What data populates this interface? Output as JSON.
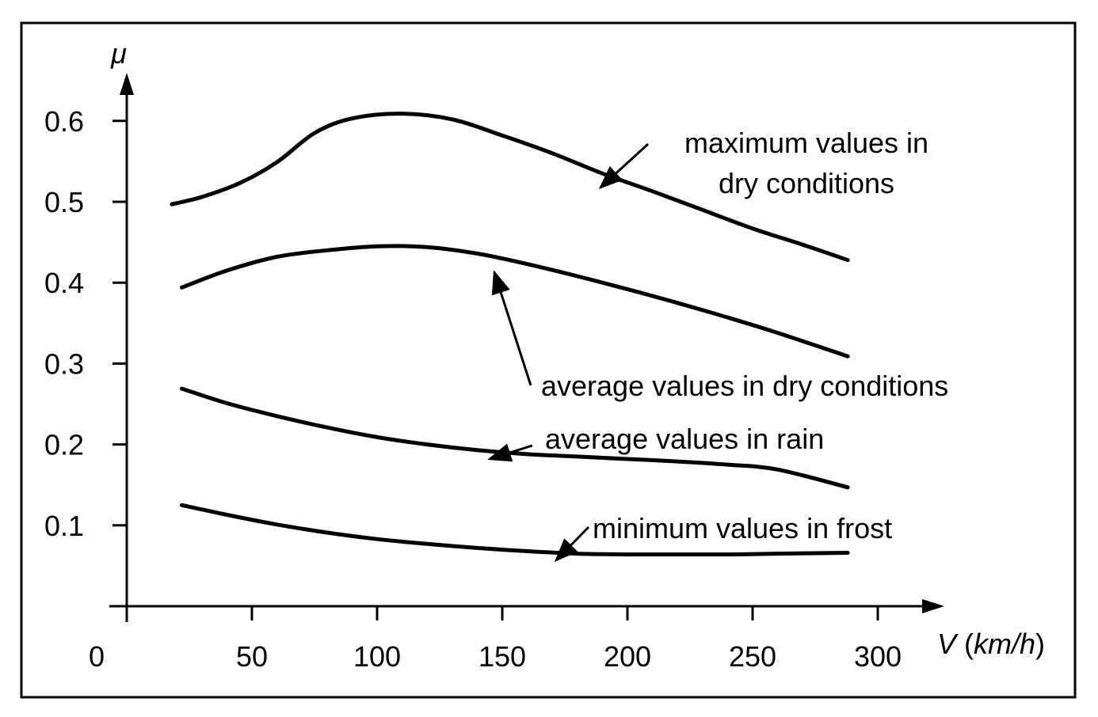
{
  "chart_data": {
    "type": "line",
    "title": "",
    "xlabel": {
      "var": "V",
      "open": " (",
      "unit": "km/h",
      "close": ")"
    },
    "ylabel": "μ",
    "xlim": [
      0,
      330
    ],
    "ylim": [
      0,
      0.67
    ],
    "x_ticks": [
      0,
      50,
      100,
      150,
      200,
      250,
      300
    ],
    "x_tick_labels": [
      "0",
      "50",
      "100",
      "150",
      "200",
      "250",
      "300"
    ],
    "y_ticks": [
      0.1,
      0.2,
      0.3,
      0.4,
      0.5,
      0.6
    ],
    "y_tick_labels": [
      "0.1",
      "0.2",
      "0.3",
      "0.4",
      "0.5",
      "0.6"
    ],
    "grid": false,
    "series": [
      {
        "name": "maximum values in dry conditions",
        "x": [
          18,
          30,
          45,
          60,
          75,
          90,
          110,
          130,
          150,
          170,
          190,
          210,
          230,
          250,
          270,
          288
        ],
        "y": [
          0.497,
          0.506,
          0.523,
          0.549,
          0.585,
          0.603,
          0.609,
          0.602,
          0.582,
          0.56,
          0.535,
          0.513,
          0.49,
          0.467,
          0.447,
          0.428
        ]
      },
      {
        "name": "average values in dry conditions",
        "x": [
          22,
          40,
          60,
          80,
          100,
          120,
          140,
          160,
          180,
          200,
          220,
          240,
          260,
          288
        ],
        "y": [
          0.394,
          0.415,
          0.432,
          0.44,
          0.445,
          0.444,
          0.436,
          0.423,
          0.408,
          0.392,
          0.375,
          0.357,
          0.338,
          0.309
        ]
      },
      {
        "name": "average values in rain",
        "x": [
          22,
          40,
          60,
          80,
          100,
          120,
          140,
          160,
          180,
          200,
          220,
          240,
          260,
          288
        ],
        "y": [
          0.269,
          0.251,
          0.235,
          0.221,
          0.209,
          0.2,
          0.193,
          0.188,
          0.185,
          0.182,
          0.179,
          0.175,
          0.169,
          0.147
        ]
      },
      {
        "name": "minimum values in frost",
        "x": [
          22,
          40,
          60,
          80,
          100,
          120,
          140,
          160,
          180,
          200,
          220,
          240,
          260,
          288
        ],
        "y": [
          0.125,
          0.113,
          0.101,
          0.091,
          0.083,
          0.077,
          0.072,
          0.068,
          0.065,
          0.064,
          0.064,
          0.064,
          0.065,
          0.066
        ]
      }
    ],
    "annotations": [
      {
        "series": "maximum values in dry conditions",
        "lines": [
          "maximum values in",
          "dry conditions"
        ],
        "point": [
          190,
          0.53
        ]
      },
      {
        "series": "average values in dry conditions",
        "lines": [
          "average values in dry conditions"
        ],
        "point": [
          147,
          0.428
        ]
      },
      {
        "series": "average values in rain",
        "lines": [
          "average values in rain"
        ],
        "point": [
          145,
          0.19
        ]
      },
      {
        "series": "minimum values in frost",
        "lines": [
          "minimum values in frost"
        ],
        "point": [
          170,
          0.066
        ]
      }
    ],
    "colors": {
      "line": "#000000",
      "background": "#ffffff"
    }
  }
}
